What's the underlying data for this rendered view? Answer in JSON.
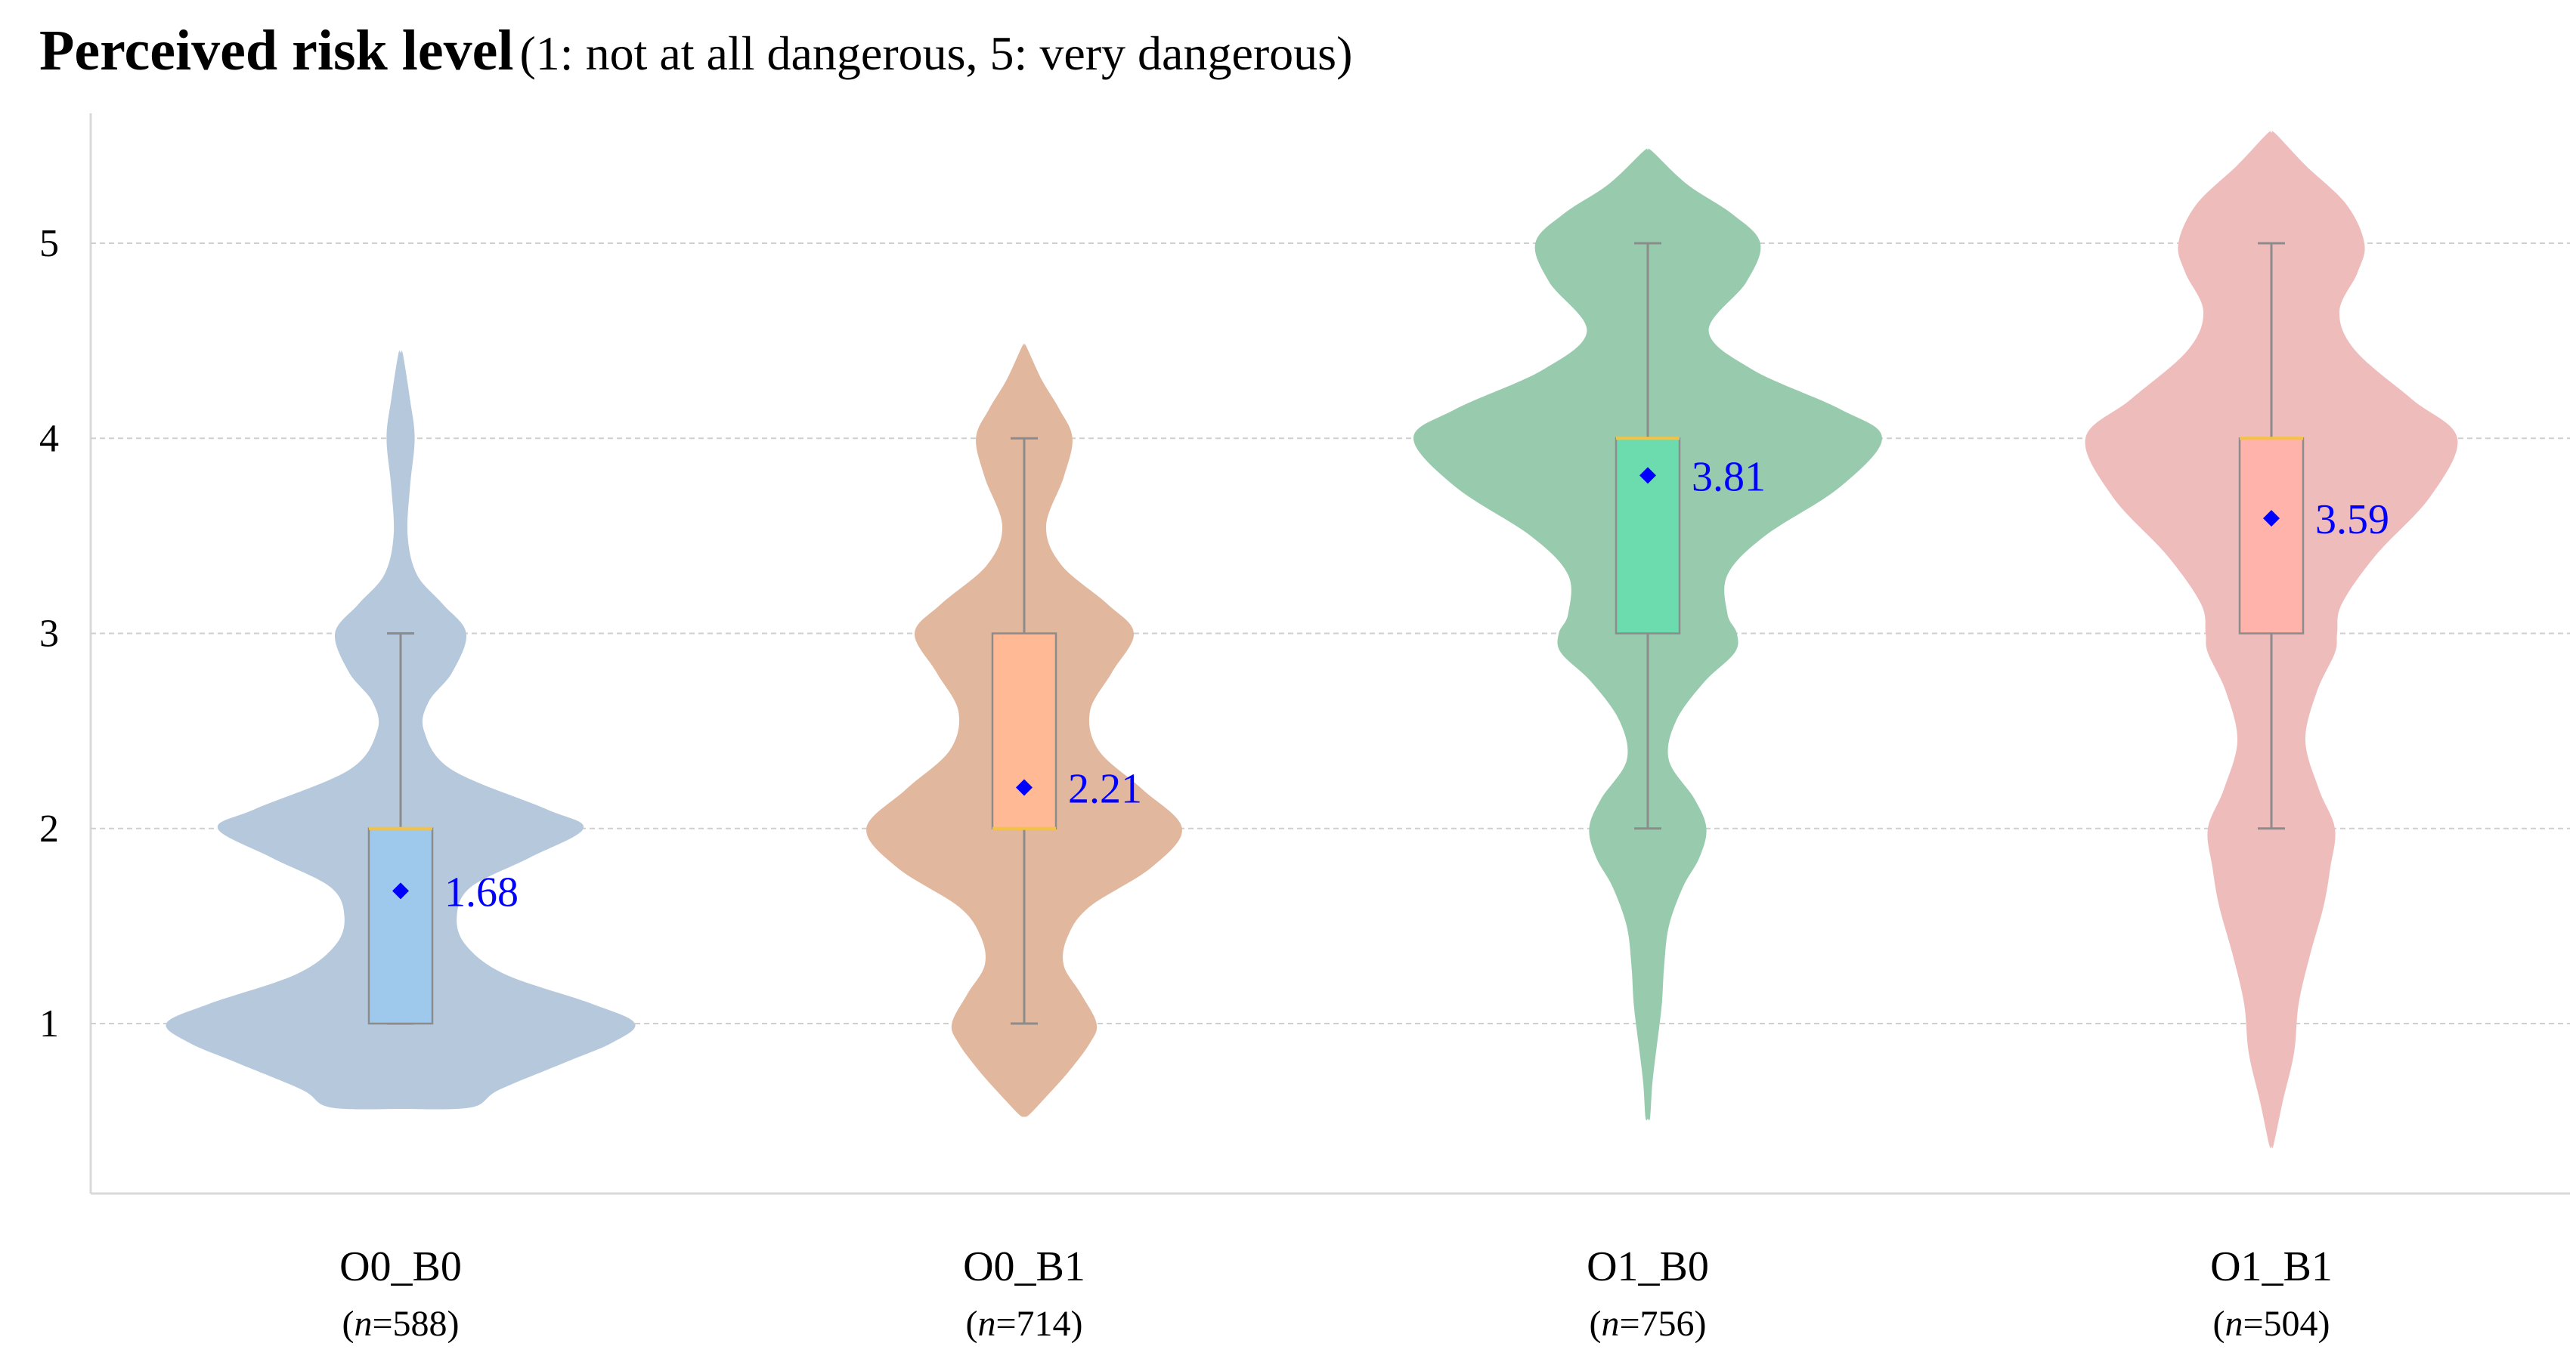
{
  "chart_data": {
    "type": "violin",
    "title": "Perceived risk level",
    "subtitle": "(1: not at all dangerous, 5: very dangerous)",
    "xlabel": "",
    "ylabel": "",
    "ylim": [
      0.15,
      5.55
    ],
    "yticks": [
      1,
      2,
      3,
      4,
      5
    ],
    "grid": true,
    "n_prefix": "n",
    "groups": [
      {
        "name": "O0_B0",
        "n": "588",
        "violin_color": "#b5c8dc",
        "box_color": "#9ec9ec",
        "box": {
          "whisker_low": 1,
          "q1": 1,
          "median": 2,
          "q3": 2,
          "whisker_high": 3
        },
        "mean": 1.68,
        "mean_label": "1.68",
        "density": [
          [
            0.57,
            0.3
          ],
          [
            0.66,
            0.42
          ],
          [
            0.8,
            0.7
          ],
          [
            0.9,
            0.9
          ],
          [
            1.0,
            1.0
          ],
          [
            1.1,
            0.82
          ],
          [
            1.25,
            0.45
          ],
          [
            1.4,
            0.28
          ],
          [
            1.55,
            0.24
          ],
          [
            1.7,
            0.3
          ],
          [
            1.85,
            0.55
          ],
          [
            2.0,
            0.78
          ],
          [
            2.1,
            0.62
          ],
          [
            2.3,
            0.22
          ],
          [
            2.5,
            0.1
          ],
          [
            2.65,
            0.12
          ],
          [
            2.8,
            0.22
          ],
          [
            3.0,
            0.28
          ],
          [
            3.15,
            0.18
          ],
          [
            3.3,
            0.07
          ],
          [
            3.5,
            0.03
          ],
          [
            3.75,
            0.04
          ],
          [
            4.0,
            0.06
          ],
          [
            4.2,
            0.04
          ],
          [
            4.43,
            0.01
          ]
        ]
      },
      {
        "name": "O0_B1",
        "n": "714",
        "violin_color": "#e1b79e",
        "box_color": "#ffb995",
        "box": {
          "whisker_low": 1,
          "q1": 2,
          "median": 2,
          "q3": 3,
          "whisker_high": 4
        },
        "mean": 2.21,
        "mean_label": "2.21",
        "density": [
          [
            0.53,
            0.02
          ],
          [
            0.6,
            0.08
          ],
          [
            0.75,
            0.2
          ],
          [
            0.9,
            0.3
          ],
          [
            1.0,
            0.33
          ],
          [
            1.15,
            0.26
          ],
          [
            1.3,
            0.18
          ],
          [
            1.45,
            0.2
          ],
          [
            1.6,
            0.3
          ],
          [
            1.8,
            0.58
          ],
          [
            2.0,
            0.72
          ],
          [
            2.2,
            0.54
          ],
          [
            2.4,
            0.34
          ],
          [
            2.6,
            0.3
          ],
          [
            2.8,
            0.4
          ],
          [
            3.0,
            0.5
          ],
          [
            3.15,
            0.38
          ],
          [
            3.35,
            0.17
          ],
          [
            3.55,
            0.1
          ],
          [
            3.8,
            0.18
          ],
          [
            4.0,
            0.22
          ],
          [
            4.15,
            0.16
          ],
          [
            4.3,
            0.08
          ],
          [
            4.47,
            0.01
          ]
        ]
      },
      {
        "name": "O1_B0",
        "n": "756",
        "violin_color": "#98cbad",
        "box_color": "#6cdcae",
        "box": {
          "whisker_low": 2,
          "q1": 3,
          "median": 4,
          "q3": 4,
          "whisker_high": 5
        },
        "mean": 3.81,
        "mean_label": "3.81",
        "density": [
          [
            0.52,
            0.01
          ],
          [
            0.7,
            0.02
          ],
          [
            0.9,
            0.04
          ],
          [
            1.1,
            0.06
          ],
          [
            1.3,
            0.07
          ],
          [
            1.5,
            0.09
          ],
          [
            1.7,
            0.15
          ],
          [
            1.85,
            0.22
          ],
          [
            2.0,
            0.25
          ],
          [
            2.15,
            0.2
          ],
          [
            2.35,
            0.09
          ],
          [
            2.55,
            0.12
          ],
          [
            2.75,
            0.24
          ],
          [
            2.9,
            0.37
          ],
          [
            3.0,
            0.38
          ],
          [
            3.1,
            0.34
          ],
          [
            3.3,
            0.34
          ],
          [
            3.5,
            0.5
          ],
          [
            3.75,
            0.82
          ],
          [
            4.0,
            1.0
          ],
          [
            4.15,
            0.82
          ],
          [
            4.35,
            0.45
          ],
          [
            4.55,
            0.26
          ],
          [
            4.8,
            0.42
          ],
          [
            5.0,
            0.48
          ],
          [
            5.15,
            0.36
          ],
          [
            5.3,
            0.17
          ],
          [
            5.47,
            0.02
          ]
        ]
      },
      {
        "name": "O1_B1",
        "n": "504",
        "violin_color": "#efbcbc",
        "box_color": "#ffb3ab",
        "box": {
          "whisker_low": 2,
          "q1": 3,
          "median": 4,
          "q3": 4,
          "whisker_high": 5
        },
        "mean": 3.59,
        "mean_label": "3.59",
        "density": [
          [
            0.38,
            0.01
          ],
          [
            0.6,
            0.05
          ],
          [
            0.85,
            0.1
          ],
          [
            1.1,
            0.12
          ],
          [
            1.35,
            0.17
          ],
          [
            1.6,
            0.23
          ],
          [
            1.8,
            0.26
          ],
          [
            2.0,
            0.28
          ],
          [
            2.2,
            0.21
          ],
          [
            2.45,
            0.15
          ],
          [
            2.7,
            0.2
          ],
          [
            2.9,
            0.28
          ],
          [
            3.0,
            0.29
          ],
          [
            3.15,
            0.31
          ],
          [
            3.4,
            0.46
          ],
          [
            3.7,
            0.7
          ],
          [
            4.0,
            0.82
          ],
          [
            4.2,
            0.62
          ],
          [
            4.45,
            0.37
          ],
          [
            4.65,
            0.3
          ],
          [
            4.85,
            0.38
          ],
          [
            5.0,
            0.41
          ],
          [
            5.2,
            0.33
          ],
          [
            5.4,
            0.15
          ],
          [
            5.56,
            0.02
          ]
        ]
      }
    ]
  }
}
